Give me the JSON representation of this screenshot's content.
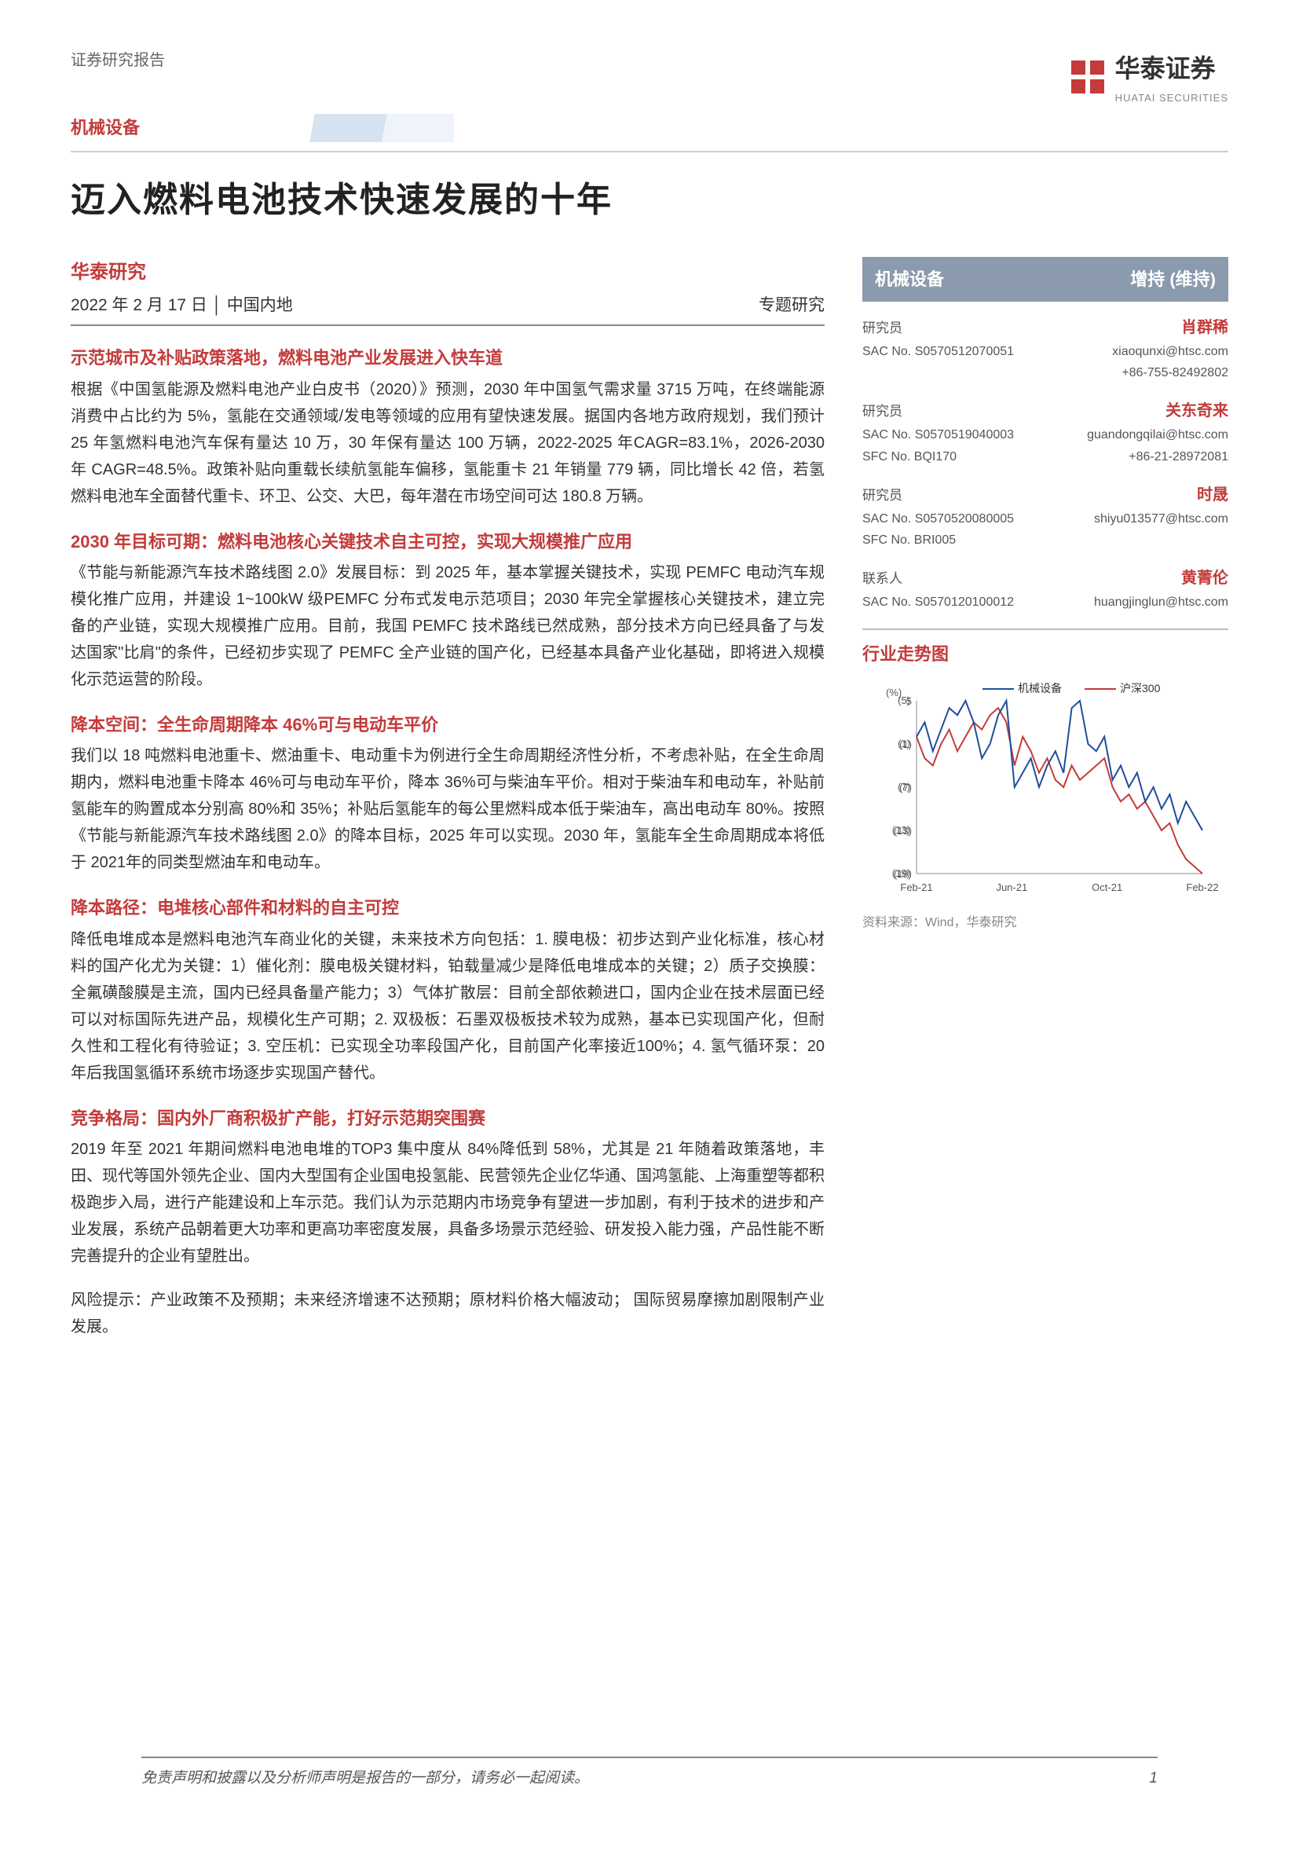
{
  "header": {
    "doc_type": "证券研究报告",
    "sector": "机械设备",
    "logo_text": "华泰证券",
    "logo_sub": "HUATAI SECURITIES"
  },
  "title": "迈入燃料电池技术快速发展的十年",
  "meta": {
    "source": "华泰研究",
    "date": "2022 年 2 月 17 日",
    "location": "中国内地",
    "report_type": "专题研究"
  },
  "sections": [
    {
      "heading": "示范城市及补贴政策落地，燃料电池产业发展进入快车道",
      "body": "根据《中国氢能源及燃料电池产业白皮书（2020）》预测，2030 年中国氢气需求量 3715 万吨，在终端能源消费中占比约为 5%，氢能在交通领域/发电等领域的应用有望快速发展。据国内各地方政府规划，我们预计 25 年氢燃料电池汽车保有量达 10 万，30 年保有量达 100 万辆，2022-2025 年CAGR=83.1%，2026-2030 年 CAGR=48.5%。政策补贴向重载长续航氢能车偏移，氢能重卡 21 年销量 779 辆，同比增长 42 倍，若氢燃料电池车全面替代重卡、环卫、公交、大巴，每年潜在市场空间可达 180.8 万辆。"
    },
    {
      "heading": "2030 年目标可期：燃料电池核心关键技术自主可控，实现大规模推广应用",
      "body": "《节能与新能源汽车技术路线图 2.0》发展目标：到 2025 年，基本掌握关键技术，实现 PEMFC 电动汽车规模化推广应用，并建设 1~100kW 级PEMFC 分布式发电示范项目；2030 年完全掌握核心关键技术，建立完备的产业链，实现大规模推广应用。目前，我国 PEMFC 技术路线已然成熟，部分技术方向已经具备了与发达国家\"比肩\"的条件，已经初步实现了 PEMFC 全产业链的国产化，已经基本具备产业化基础，即将进入规模化示范运营的阶段。"
    },
    {
      "heading": "降本空间：全生命周期降本 46%可与电动车平价",
      "body": "我们以 18 吨燃料电池重卡、燃油重卡、电动重卡为例进行全生命周期经济性分析，不考虑补贴，在全生命周期内，燃料电池重卡降本 46%可与电动车平价，降本 36%可与柴油车平价。相对于柴油车和电动车，补贴前氢能车的购置成本分别高 80%和 35%；补贴后氢能车的每公里燃料成本低于柴油车，高出电动车 80%。按照《节能与新能源汽车技术路线图 2.0》的降本目标，2025 年可以实现。2030 年，氢能车全生命周期成本将低于 2021年的同类型燃油车和电动车。"
    },
    {
      "heading": "降本路径：电堆核心部件和材料的自主可控",
      "body": "降低电堆成本是燃料电池汽车商业化的关键，未来技术方向包括：1. 膜电极：初步达到产业化标准，核心材料的国产化尤为关键：1）催化剂：膜电极关键材料，铂载量减少是降低电堆成本的关键；2）质子交换膜：全氟磺酸膜是主流，国内已经具备量产能力；3）气体扩散层：目前全部依赖进口，国内企业在技术层面已经可以对标国际先进产品，规模化生产可期；2. 双极板：石墨双极板技术较为成熟，基本已实现国产化，但耐久性和工程化有待验证；3. 空压机：已实现全功率段国产化，目前国产化率接近100%；4. 氢气循环泵：20 年后我国氢循环系统市场逐步实现国产替代。"
    },
    {
      "heading": "竞争格局：国内外厂商积极扩产能，打好示范期突围赛",
      "body": "2019 年至 2021 年期间燃料电池电堆的TOP3 集中度从 84%降低到 58%，尤其是 21 年随着政策落地，丰田、现代等国外领先企业、国内大型国有企业国电投氢能、民营领先企业亿华通、国鸿氢能、上海重塑等都积极跑步入局，进行产能建设和上车示范。我们认为示范期内市场竞争有望进一步加剧，有利于技术的进步和产业发展，系统产品朝着更大功率和更高功率密度发展，具备多场景示范经验、研发投入能力强，产品性能不断完善提升的企业有望胜出。"
    }
  ],
  "risk": "风险提示：产业政策不及预期；未来经济增速不达预期；原材料价格大幅波动； 国际贸易摩擦加剧限制产业发展。",
  "right": {
    "sector": "机械设备",
    "rating": "增持 (维持)",
    "analysts": [
      {
        "role": "研究员",
        "name": "肖群稀",
        "sac": "SAC No. S0570512070051",
        "email": "xiaoqunxi@htsc.com",
        "phone": "+86-755-82492802"
      },
      {
        "role": "研究员",
        "name": "关东奇来",
        "sac": "SAC No. S0570519040003",
        "sfc": "SFC No. BQI170",
        "email": "guandongqilai@htsc.com",
        "phone": "+86-21-28972081"
      },
      {
        "role": "研究员",
        "name": "时晟",
        "sac": "SAC No. S0570520080005",
        "sfc": "SFC No. BRI005",
        "email": "shiyu013577@htsc.com",
        "phone": ""
      },
      {
        "role": "联系人",
        "name": "黄菁伦",
        "sac": "SAC No. S0570120100012",
        "email": "huangjinglun@htsc.com",
        "phone": ""
      }
    ],
    "chart": {
      "title": "行业走势图",
      "type": "line",
      "legend": [
        "机械设备",
        "沪深300"
      ],
      "legend_colors": [
        "#1f4e9c",
        "#c43b3b"
      ],
      "x_labels": [
        "Feb-21",
        "Jun-21",
        "Oct-21",
        "Feb-22"
      ],
      "y_ticks": [
        5,
        -1,
        -7,
        -13,
        -19
      ],
      "y_unit": "(%)",
      "series1_color": "#1f4e9c",
      "series2_color": "#c43b3b",
      "background": "#ffffff",
      "grid_color": "#cccccc",
      "series1": [
        0,
        2,
        -2,
        1,
        4,
        3,
        5,
        2,
        -3,
        -1,
        3,
        5,
        -7,
        -5,
        -3,
        -7,
        -4,
        -2,
        -5,
        4,
        5,
        -1,
        -2,
        0,
        -6,
        -4,
        -7,
        -5,
        -9,
        -7,
        -10,
        -8,
        -12,
        -9,
        -11,
        -13
      ],
      "series2": [
        0,
        -3,
        -4,
        -1,
        1,
        -2,
        0,
        2,
        1,
        3,
        4,
        2,
        -4,
        0,
        -2,
        -5,
        -3,
        -6,
        -7,
        -4,
        -6,
        -5,
        -4,
        -3,
        -7,
        -9,
        -8,
        -10,
        -9,
        -11,
        -13,
        -12,
        -15,
        -17,
        -18,
        -19
      ],
      "source": "资料来源：Wind，华泰研究"
    }
  },
  "footer": {
    "disclaimer": "免责声明和披露以及分析师声明是报告的一部分，请务必一起阅读。",
    "page": "1"
  }
}
